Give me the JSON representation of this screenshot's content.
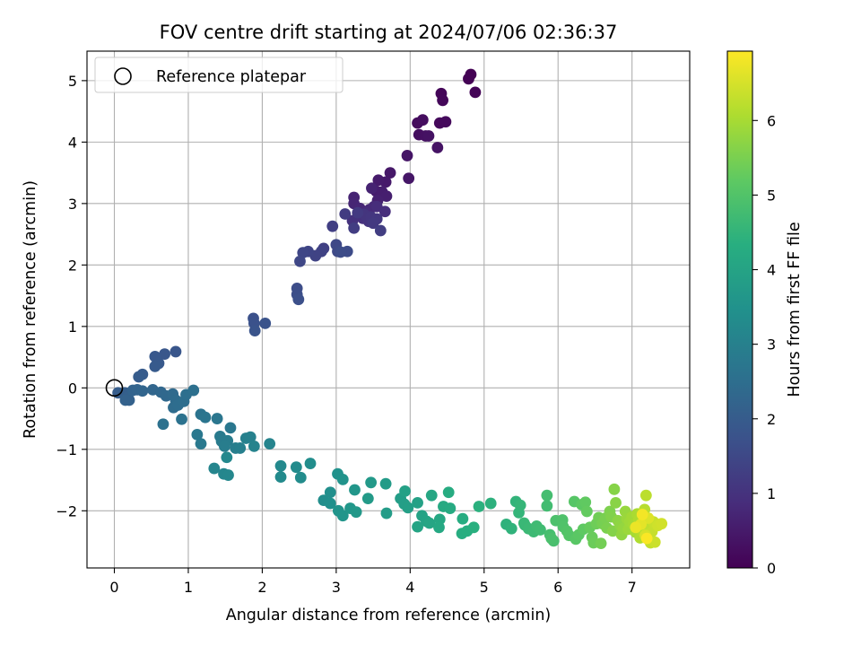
{
  "chart_data": {
    "type": "scatter",
    "title": "FOV centre drift starting at 2024/07/06 02:36:37",
    "xlabel": "Angular distance from reference (arcmin)",
    "ylabel": "Rotation from reference (arcmin)",
    "xlim": [
      -0.37,
      7.78
    ],
    "ylim": [
      -2.93,
      5.48
    ],
    "xticks": [
      0,
      1,
      2,
      3,
      4,
      5,
      6,
      7
    ],
    "yticks": [
      -2,
      -1,
      0,
      1,
      2,
      3,
      4,
      5
    ],
    "xtick_labels": [
      "0",
      "1",
      "2",
      "3",
      "4",
      "5",
      "6",
      "7"
    ],
    "ytick_labels": [
      "−2",
      "−1",
      "0",
      "1",
      "2",
      "3",
      "4",
      "5"
    ],
    "grid": true,
    "legend": {
      "placement": "top-left",
      "entries": [
        {
          "label": "Reference platepar",
          "marker": "open-circle"
        }
      ]
    },
    "reference_point": {
      "x": 0,
      "y": 0
    },
    "colorbar": {
      "label": "Hours from first FF file",
      "colormap": "viridis",
      "range": [
        0,
        6.93
      ],
      "ticks": [
        0,
        1,
        2,
        3,
        4,
        5,
        6
      ],
      "tick_labels": [
        "0",
        "1",
        "2",
        "3",
        "4",
        "5",
        "6"
      ]
    },
    "series": [
      {
        "points": [
          [
            4.82,
            5.1,
            0.0
          ],
          [
            4.79,
            5.03,
            0.03
          ],
          [
            4.88,
            4.81,
            0.06
          ],
          [
            4.42,
            4.79,
            0.09
          ],
          [
            4.44,
            4.68,
            0.12
          ],
          [
            4.4,
            4.31,
            0.15
          ],
          [
            4.48,
            4.33,
            0.18
          ],
          [
            4.1,
            4.31,
            0.21
          ],
          [
            4.17,
            4.36,
            0.24
          ],
          [
            4.12,
            4.12,
            0.27
          ],
          [
            4.21,
            4.1,
            0.3
          ],
          [
            4.25,
            4.1,
            0.33
          ],
          [
            4.37,
            3.91,
            0.36
          ],
          [
            3.96,
            3.78,
            0.39
          ],
          [
            3.98,
            3.41,
            0.42
          ],
          [
            3.73,
            3.5,
            0.45
          ],
          [
            3.67,
            3.35,
            0.48
          ],
          [
            3.57,
            3.38,
            0.51
          ],
          [
            3.54,
            3.2,
            0.54
          ],
          [
            3.62,
            3.19,
            0.57
          ],
          [
            3.68,
            3.12,
            0.6
          ],
          [
            3.56,
            3.05,
            0.63
          ],
          [
            3.48,
            3.25,
            0.66
          ],
          [
            3.24,
            3.1,
            0.69
          ],
          [
            3.24,
            3.0,
            0.72
          ],
          [
            3.32,
            2.92,
            0.75
          ],
          [
            3.45,
            2.9,
            0.78
          ],
          [
            3.51,
            2.95,
            0.81
          ],
          [
            3.4,
            2.85,
            0.84
          ],
          [
            3.55,
            2.95,
            0.87
          ],
          [
            3.66,
            2.87,
            0.9
          ],
          [
            3.3,
            2.8,
            0.93
          ],
          [
            3.36,
            2.76,
            0.96
          ],
          [
            3.22,
            2.72,
            0.99
          ],
          [
            3.44,
            2.71,
            1.02
          ],
          [
            3.38,
            2.82,
            1.05
          ],
          [
            3.47,
            2.78,
            1.08
          ],
          [
            3.55,
            2.75,
            1.11
          ],
          [
            3.5,
            2.68,
            1.14
          ],
          [
            3.29,
            2.85,
            1.17
          ],
          [
            3.12,
            2.83,
            1.2
          ],
          [
            3.24,
            2.6,
            1.23
          ],
          [
            3.6,
            2.56,
            1.26
          ],
          [
            2.95,
            2.63,
            1.29
          ],
          [
            2.83,
            2.27,
            1.32
          ],
          [
            2.8,
            2.22,
            1.35
          ],
          [
            2.72,
            2.15,
            1.38
          ],
          [
            2.62,
            2.22,
            1.41
          ],
          [
            2.55,
            2.2,
            1.44
          ],
          [
            2.51,
            2.06,
            1.47
          ],
          [
            3.0,
            2.33,
            1.5
          ],
          [
            3.02,
            2.22,
            1.53
          ],
          [
            3.15,
            2.22,
            1.56
          ],
          [
            3.06,
            2.21,
            1.59
          ],
          [
            2.47,
            1.62,
            1.62
          ],
          [
            2.47,
            1.52,
            1.65
          ],
          [
            2.49,
            1.44,
            1.68
          ],
          [
            1.88,
            1.13,
            1.71
          ],
          [
            1.89,
            1.05,
            1.74
          ],
          [
            2.04,
            1.05,
            1.77
          ],
          [
            1.9,
            0.93,
            1.8
          ],
          [
            0.83,
            0.59,
            1.83
          ],
          [
            0.68,
            0.55,
            1.86
          ],
          [
            0.55,
            0.51,
            1.89
          ],
          [
            0.6,
            0.4,
            1.92
          ],
          [
            0.55,
            0.35,
            1.95
          ],
          [
            0.38,
            0.22,
            1.98
          ],
          [
            0.33,
            0.18,
            2.01
          ],
          [
            0.05,
            -0.08,
            2.04
          ],
          [
            0.14,
            -0.08,
            2.07
          ],
          [
            0.18,
            -0.15,
            2.1
          ],
          [
            0.2,
            -0.2,
            2.13
          ],
          [
            0.15,
            -0.2,
            2.16
          ],
          [
            0.25,
            -0.04,
            2.19
          ],
          [
            0.31,
            -0.03,
            2.22
          ],
          [
            0.38,
            -0.05,
            2.25
          ],
          [
            0.52,
            -0.03,
            2.28
          ],
          [
            0.63,
            -0.07,
            2.31
          ],
          [
            0.7,
            -0.13,
            2.34
          ],
          [
            0.79,
            -0.1,
            2.37
          ],
          [
            0.83,
            -0.2,
            2.4
          ],
          [
            0.8,
            -0.32,
            2.43
          ],
          [
            0.86,
            -0.28,
            2.46
          ],
          [
            0.94,
            -0.22,
            2.49
          ],
          [
            0.97,
            -0.11,
            2.52
          ],
          [
            1.07,
            -0.04,
            2.55
          ],
          [
            0.66,
            -0.59,
            2.58
          ],
          [
            0.91,
            -0.51,
            2.61
          ],
          [
            1.17,
            -0.43,
            2.64
          ],
          [
            1.23,
            -0.48,
            2.67
          ],
          [
            1.39,
            -0.5,
            2.7
          ],
          [
            1.57,
            -0.65,
            2.73
          ],
          [
            1.12,
            -0.76,
            2.76
          ],
          [
            1.17,
            -0.91,
            2.79
          ],
          [
            1.43,
            -0.79,
            2.82
          ],
          [
            1.45,
            -0.87,
            2.85
          ],
          [
            1.53,
            -0.86,
            2.88
          ],
          [
            1.49,
            -0.95,
            2.91
          ],
          [
            1.64,
            -0.98,
            2.94
          ],
          [
            1.7,
            -0.98,
            2.97
          ],
          [
            1.78,
            -0.82,
            3.0
          ],
          [
            1.84,
            -0.8,
            3.03
          ],
          [
            1.89,
            -0.95,
            3.06
          ],
          [
            2.1,
            -0.91,
            3.09
          ],
          [
            1.35,
            -1.31,
            3.12
          ],
          [
            1.48,
            -1.4,
            3.15
          ],
          [
            1.54,
            -1.42,
            3.18
          ],
          [
            1.52,
            -1.13,
            3.21
          ],
          [
            2.25,
            -1.27,
            3.24
          ],
          [
            2.25,
            -1.45,
            3.27
          ],
          [
            2.46,
            -1.29,
            3.3
          ],
          [
            2.52,
            -1.46,
            3.33
          ],
          [
            2.65,
            -1.23,
            3.36
          ],
          [
            2.83,
            -1.83,
            3.39
          ],
          [
            2.92,
            -1.7,
            3.42
          ],
          [
            2.92,
            -1.88,
            3.45
          ],
          [
            3.02,
            -1.4,
            3.48
          ],
          [
            3.09,
            -1.49,
            3.51
          ],
          [
            3.03,
            -2.0,
            3.54
          ],
          [
            3.09,
            -2.08,
            3.57
          ],
          [
            3.25,
            -1.66,
            3.6
          ],
          [
            3.19,
            -1.96,
            3.63
          ],
          [
            3.27,
            -2.02,
            3.66
          ],
          [
            3.47,
            -1.54,
            3.69
          ],
          [
            3.43,
            -1.8,
            3.72
          ],
          [
            3.67,
            -1.56,
            3.75
          ],
          [
            3.68,
            -2.04,
            3.78
          ],
          [
            3.87,
            -1.8,
            3.81
          ],
          [
            3.92,
            -1.89,
            3.84
          ],
          [
            3.97,
            -1.95,
            3.87
          ],
          [
            3.93,
            -1.68,
            3.9
          ],
          [
            4.1,
            -1.87,
            3.93
          ],
          [
            4.16,
            -2.08,
            3.96
          ],
          [
            4.22,
            -2.17,
            3.99
          ],
          [
            4.1,
            -2.26,
            4.02
          ],
          [
            4.26,
            -2.2,
            4.05
          ],
          [
            4.29,
            -1.75,
            4.08
          ],
          [
            4.4,
            -2.14,
            4.11
          ],
          [
            4.39,
            -2.27,
            4.14
          ],
          [
            4.45,
            -1.93,
            4.17
          ],
          [
            4.54,
            -1.96,
            4.2
          ],
          [
            4.52,
            -1.7,
            4.23
          ],
          [
            4.71,
            -2.13,
            4.26
          ],
          [
            4.7,
            -2.37,
            4.29
          ],
          [
            4.77,
            -2.33,
            4.32
          ],
          [
            4.86,
            -2.27,
            4.35
          ],
          [
            4.93,
            -1.93,
            4.38
          ],
          [
            5.09,
            -1.88,
            4.41
          ],
          [
            5.3,
            -2.22,
            4.44
          ],
          [
            5.37,
            -2.29,
            4.47
          ],
          [
            5.43,
            -1.85,
            4.5
          ],
          [
            5.47,
            -2.03,
            4.53
          ],
          [
            5.49,
            -1.91,
            4.56
          ],
          [
            5.55,
            -2.23,
            4.59
          ],
          [
            5.54,
            -2.2,
            4.62
          ],
          [
            5.6,
            -2.29,
            4.65
          ],
          [
            5.67,
            -2.34,
            4.68
          ],
          [
            5.71,
            -2.25,
            4.71
          ],
          [
            5.76,
            -2.31,
            4.74
          ],
          [
            5.85,
            -1.92,
            4.77
          ],
          [
            5.85,
            -1.75,
            4.8
          ],
          [
            5.89,
            -2.39,
            4.83
          ],
          [
            5.94,
            -2.49,
            4.86
          ],
          [
            5.91,
            -2.45,
            4.89
          ],
          [
            5.97,
            -2.16,
            4.92
          ],
          [
            6.06,
            -2.15,
            4.95
          ],
          [
            6.07,
            -2.26,
            4.98
          ],
          [
            6.12,
            -2.33,
            5.01
          ],
          [
            6.15,
            -2.4,
            5.04
          ],
          [
            6.22,
            -1.85,
            5.07
          ],
          [
            6.24,
            -2.46,
            5.1
          ],
          [
            6.28,
            -2.39,
            5.13
          ],
          [
            6.32,
            -1.9,
            5.16
          ],
          [
            6.34,
            -2.3,
            5.19
          ],
          [
            6.37,
            -1.86,
            5.22
          ],
          [
            6.39,
            -2.01,
            5.25
          ],
          [
            6.43,
            -2.27,
            5.28
          ],
          [
            6.46,
            -2.43,
            5.31
          ],
          [
            6.48,
            -2.52,
            5.34
          ],
          [
            6.52,
            -2.21,
            5.37
          ],
          [
            6.55,
            -2.11,
            5.4
          ],
          [
            6.58,
            -2.53,
            5.43
          ],
          [
            6.6,
            -2.21,
            5.46
          ],
          [
            6.64,
            -2.12,
            5.49
          ],
          [
            6.66,
            -2.28,
            5.52
          ],
          [
            6.7,
            -2.01,
            5.55
          ],
          [
            6.72,
            -2.1,
            5.58
          ],
          [
            6.74,
            -2.33,
            5.61
          ],
          [
            6.76,
            -1.65,
            5.64
          ],
          [
            6.78,
            -1.87,
            5.67
          ],
          [
            6.81,
            -2.16,
            5.7
          ],
          [
            6.84,
            -2.24,
            5.73
          ],
          [
            6.86,
            -2.39,
            5.76
          ],
          [
            6.88,
            -2.29,
            5.79
          ],
          [
            6.91,
            -2.01,
            5.82
          ],
          [
            6.93,
            -2.13,
            5.85
          ],
          [
            6.95,
            -2.3,
            5.88
          ],
          [
            6.97,
            -2.18,
            5.91
          ],
          [
            7.0,
            -2.1,
            5.94
          ],
          [
            7.02,
            -2.22,
            5.97
          ],
          [
            7.05,
            -2.35,
            6.0
          ],
          [
            7.07,
            -2.05,
            6.03
          ],
          [
            7.09,
            -2.15,
            6.06
          ],
          [
            7.11,
            -2.44,
            6.09
          ],
          [
            7.13,
            -2.29,
            6.12
          ],
          [
            7.15,
            -2.36,
            6.15
          ],
          [
            7.17,
            -1.98,
            6.18
          ],
          [
            7.19,
            -1.75,
            6.21
          ],
          [
            7.21,
            -2.2,
            6.24
          ],
          [
            7.23,
            -2.28,
            6.27
          ],
          [
            7.25,
            -2.52,
            6.3
          ],
          [
            7.27,
            -2.34,
            6.33
          ],
          [
            7.29,
            -2.18,
            6.36
          ],
          [
            7.31,
            -2.51,
            6.39
          ],
          [
            7.35,
            -2.24,
            6.42
          ],
          [
            7.4,
            -2.21,
            6.45
          ],
          [
            7.18,
            -2.4,
            6.5
          ],
          [
            7.22,
            -2.12,
            6.58
          ],
          [
            7.12,
            -2.22,
            6.66
          ],
          [
            7.05,
            -2.27,
            6.74
          ],
          [
            7.14,
            -2.06,
            6.82
          ],
          [
            7.2,
            -2.45,
            6.9
          ]
        ]
      }
    ]
  }
}
